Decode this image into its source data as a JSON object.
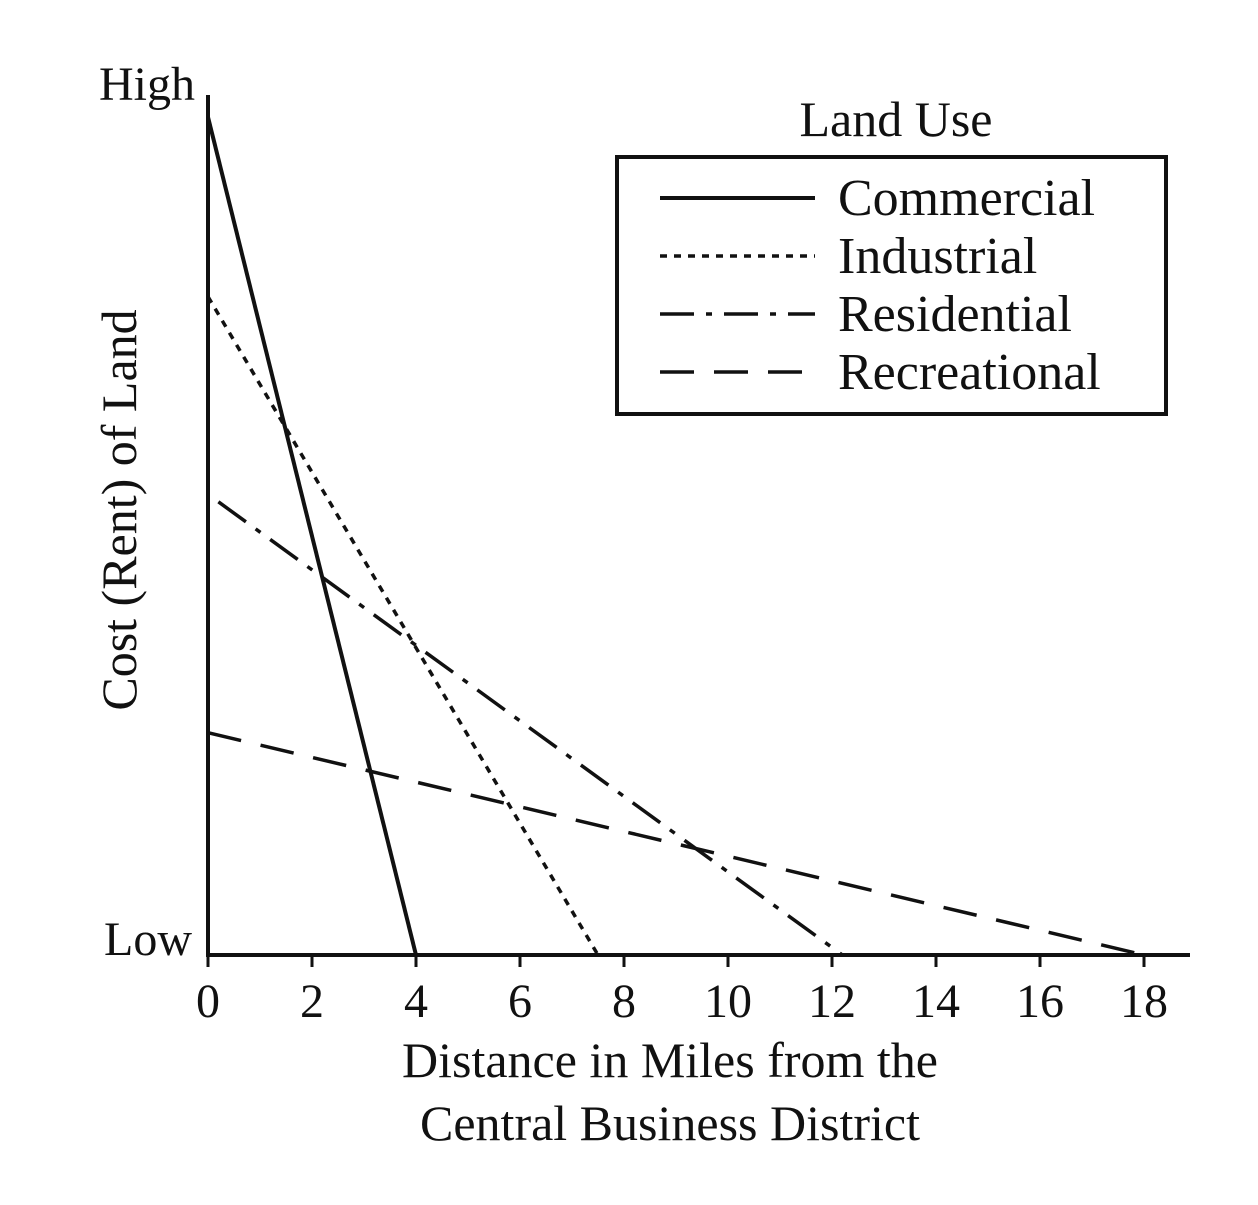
{
  "chart_data": {
    "type": "line",
    "title": "",
    "xlabel_lines": [
      "Distance in Miles from the",
      "Central Business District"
    ],
    "ylabel": "Cost (Rent) of Land",
    "y_high_label": "High",
    "y_low_label": "Low",
    "xlim": [
      0,
      19
    ],
    "ylim": [
      0,
      10
    ],
    "x_ticks": [
      0,
      2,
      4,
      6,
      8,
      10,
      12,
      14,
      16,
      18
    ],
    "grid": false,
    "legend": {
      "title": "Land Use",
      "placement": "top-right",
      "entries": [
        {
          "label": "Commercial",
          "style": "solid"
        },
        {
          "label": "Industrial",
          "style": "dotted"
        },
        {
          "label": "Residential",
          "style": "dash-dot"
        },
        {
          "label": "Recreational",
          "style": "dashed"
        }
      ]
    },
    "series": [
      {
        "name": "Commercial",
        "style": "solid",
        "x": [
          0,
          4
        ],
        "y": [
          9.8,
          0
        ]
      },
      {
        "name": "Industrial",
        "style": "dotted",
        "x": [
          0,
          7.5
        ],
        "y": [
          7.7,
          0
        ]
      },
      {
        "name": "Residential",
        "style": "dash-dot",
        "x": [
          0.2,
          12.2
        ],
        "y": [
          5.3,
          0
        ]
      },
      {
        "name": "Recreational",
        "style": "dashed",
        "x": [
          0,
          18
        ],
        "y": [
          2.6,
          0
        ]
      }
    ],
    "color": "#111111"
  }
}
